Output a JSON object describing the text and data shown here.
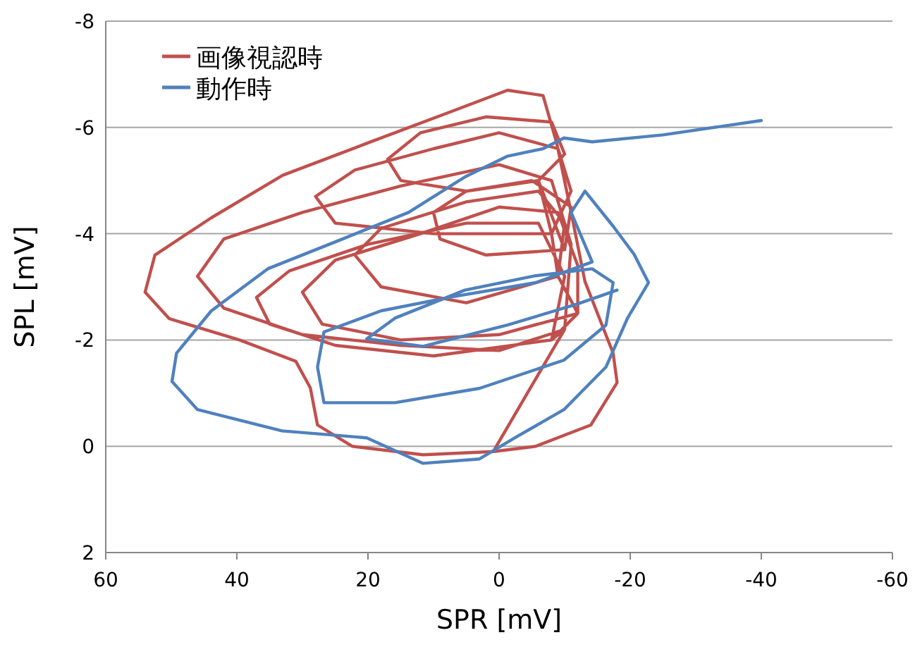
{
  "chart_data": {
    "type": "line",
    "xlabel": "SPR [mV]",
    "ylabel": "SPL [mV]",
    "xlim": [
      60,
      -60
    ],
    "ylim": [
      2,
      -8
    ],
    "xticks": [
      60,
      40,
      20,
      0,
      -20,
      -40,
      -60
    ],
    "yticks": [
      -8,
      -6,
      -4,
      -2,
      0,
      2
    ],
    "grid": "y",
    "legend": "top left",
    "marker": "none",
    "line_style": "solid",
    "series": [
      {
        "name": "画像視認時",
        "color": "#c0504d",
        "x": [
          1,
          11.6,
          22.4,
          27.7,
          28.8,
          31,
          39.6,
          50.3,
          54,
          52.5,
          43.9,
          33,
          20.2,
          7.3,
          -1.3,
          -6.7,
          -8.8,
          -11,
          -13.1,
          -17.4,
          -18,
          -14,
          -5.6,
          0.9,
          -10,
          0,
          15,
          30,
          42,
          46,
          42,
          30,
          15,
          0,
          -8,
          -11,
          -10,
          -8,
          10,
          25,
          35,
          37,
          32,
          20,
          5,
          -6,
          -10,
          -8,
          -12,
          0,
          15,
          27,
          30,
          25,
          12,
          0,
          -9,
          -12,
          -12,
          -9,
          5,
          18,
          22,
          18,
          5,
          -6,
          -10,
          -9,
          -8,
          10,
          25,
          28,
          22,
          10,
          0,
          -9,
          -11,
          -8,
          -6,
          5,
          15,
          17,
          12,
          2,
          -8,
          -10,
          -6,
          -10,
          2,
          9,
          10,
          5,
          -5,
          -11,
          -10
        ],
        "values": [
          0.1,
          0.16,
          0,
          -0.4,
          -1.1,
          -1.6,
          -2.0,
          -2.4,
          -2.9,
          -3.6,
          -4.3,
          -5.1,
          -5.7,
          -6.3,
          -6.7,
          -6.6,
          -5.7,
          -4.4,
          -3.1,
          -1.75,
          -1.2,
          -0.4,
          0,
          0.1,
          -2.2,
          -1.8,
          -1.9,
          -2.1,
          -2.6,
          -3.2,
          -3.9,
          -4.4,
          -4.9,
          -5.3,
          -5.0,
          -3.8,
          -2.2,
          -2.0,
          -1.7,
          -1.9,
          -2.3,
          -2.8,
          -3.3,
          -3.8,
          -4.2,
          -4.2,
          -3.2,
          -2.0,
          -2.5,
          -2.1,
          -2.0,
          -2.3,
          -2.9,
          -3.5,
          -4.0,
          -4.5,
          -4.4,
          -3.4,
          -2.5,
          -3.2,
          -2.7,
          -3.0,
          -3.6,
          -4.1,
          -4.6,
          -4.8,
          -4.2,
          -3.2,
          -4.0,
          -4.0,
          -4.2,
          -4.7,
          -5.2,
          -5.6,
          -5.9,
          -5.6,
          -4.8,
          -4.0,
          -5.0,
          -4.8,
          -5.0,
          -5.4,
          -5.9,
          -6.2,
          -6.1,
          -5.5,
          -5.0,
          -3.7,
          -3.6,
          -3.9,
          -4.4,
          -4.8,
          -5.0,
          -4.5,
          -3.7
        ]
      },
      {
        "name": "動作時",
        "color": "#4f81bd",
        "x": [
          -40,
          -25,
          -14.2,
          -9.9,
          -6.7,
          -1.3,
          5.2,
          13.8,
          24.5,
          35.3,
          43.9,
          49.2,
          49.9,
          46,
          33.1,
          20.2,
          11.6,
          3,
          -2.4,
          -9.9,
          -16.3,
          -19.6,
          -22.8,
          -20.6,
          -17.4,
          -13.1,
          -11,
          -14.2,
          -5.6,
          7.3,
          18,
          26.7,
          27.7,
          26.7,
          15.9,
          3,
          -9.9,
          -16.3,
          -17.4,
          -14.2,
          -5.6,
          5.2,
          15.9,
          20.2,
          11.6,
          -1.3,
          -12,
          -18
        ],
        "values": [
          -6.13,
          -5.86,
          -5.73,
          -5.8,
          -5.6,
          -5.46,
          -5.07,
          -4.4,
          -3.87,
          -3.34,
          -2.55,
          -1.75,
          -1.22,
          -0.69,
          -0.29,
          -0.16,
          0.32,
          0.24,
          -0.16,
          -0.69,
          -1.49,
          -2.41,
          -3.08,
          -3.61,
          -4.14,
          -4.8,
          -4.4,
          -3.47,
          -3.08,
          -2.81,
          -2.55,
          -2.15,
          -1.49,
          -0.82,
          -0.82,
          -1.09,
          -1.62,
          -2.28,
          -3.08,
          -3.34,
          -3.21,
          -2.94,
          -2.41,
          -2.02,
          -1.88,
          -2.28,
          -2.68,
          -2.94
        ]
      }
    ]
  }
}
